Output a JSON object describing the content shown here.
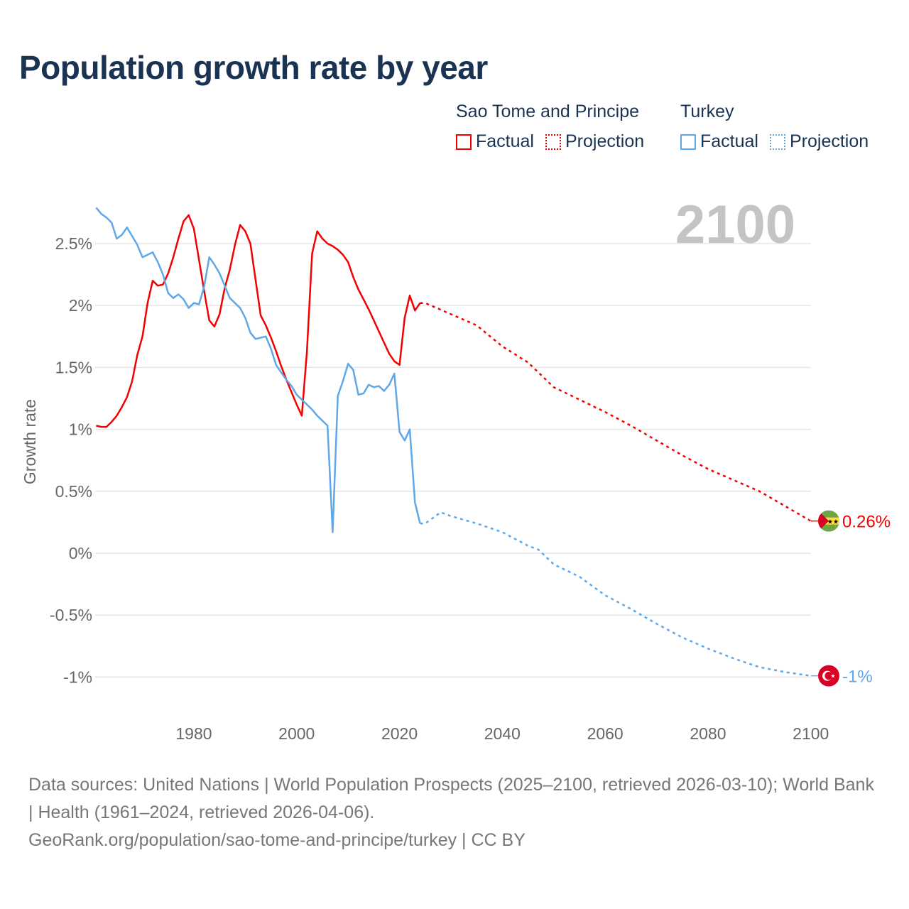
{
  "title": "Population growth rate by year",
  "legend": {
    "groups": [
      {
        "name": "Sao Tome and Principe",
        "color": "#f40000",
        "factual_label": "Factual",
        "projection_label": "Projection"
      },
      {
        "name": "Turkey",
        "color": "#5ea8ea",
        "factual_label": "Factual",
        "projection_label": "Projection"
      }
    ]
  },
  "year_watermark": "2100",
  "footer": {
    "sources": "Data sources: United Nations | World Population Prospects (2025–2100, retrieved 2026-03-10); World Bank | Health (1961–2024, retrieved 2026-04-06).",
    "link": "GeoRank.org/population/sao-tome-and-principe/turkey | CC BY"
  },
  "chart_data": {
    "type": "line",
    "title": "Population growth rate by year",
    "xlabel": "",
    "ylabel": "Growth rate",
    "xlim": [
      1961,
      2100
    ],
    "ylim": [
      -1.15,
      2.85
    ],
    "x_ticks": [
      1980,
      2000,
      2020,
      2040,
      2060,
      2080,
      2100
    ],
    "x_tick_labels": [
      "1980",
      "2000",
      "2020",
      "2040",
      "2060",
      "2080",
      "2100"
    ],
    "y_ticks": [
      2.5,
      2,
      1.5,
      1,
      0.5,
      0,
      -0.5,
      -1
    ],
    "y_tick_labels": [
      "2.5%",
      "2%",
      "1.5%",
      "1%",
      "0.5%",
      "0%",
      "-0.5%",
      "-1%"
    ],
    "grid": true,
    "legend_position": "top-right",
    "series": [
      {
        "name": "Sao Tome and Principe",
        "end_label": "0.26%",
        "factual": {
          "x": [
            1961,
            1962,
            1963,
            1964,
            1965,
            1966,
            1967,
            1968,
            1969,
            1970,
            1971,
            1972,
            1973,
            1974,
            1975,
            1976,
            1977,
            1978,
            1979,
            1980,
            1981,
            1982,
            1983,
            1984,
            1985,
            1986,
            1987,
            1988,
            1989,
            1990,
            1991,
            1992,
            1993,
            1994,
            1995,
            1996,
            1997,
            1998,
            1999,
            2000,
            2001,
            2002,
            2003,
            2004,
            2005,
            2006,
            2007,
            2008,
            2009,
            2010,
            2011,
            2012,
            2013,
            2014,
            2015,
            2016,
            2017,
            2018,
            2019,
            2020,
            2021,
            2022,
            2023,
            2024
          ],
          "y": [
            1.03,
            1.02,
            1.02,
            1.06,
            1.11,
            1.18,
            1.26,
            1.39,
            1.6,
            1.75,
            2.02,
            2.2,
            2.16,
            2.17,
            2.26,
            2.39,
            2.54,
            2.68,
            2.73,
            2.62,
            2.37,
            2.12,
            1.88,
            1.83,
            1.93,
            2.14,
            2.29,
            2.49,
            2.65,
            2.6,
            2.5,
            2.21,
            1.92,
            1.84,
            1.74,
            1.63,
            1.51,
            1.4,
            1.3,
            1.2,
            1.11,
            1.63,
            2.42,
            2.6,
            2.54,
            2.5,
            2.48,
            2.45,
            2.41,
            2.35,
            2.23,
            2.13,
            2.05,
            1.97,
            1.88,
            1.79,
            1.7,
            1.61,
            1.55,
            1.52,
            1.9,
            2.08,
            1.96,
            2.02
          ]
        },
        "projection": {
          "x": [
            2024,
            2025,
            2030,
            2035,
            2040,
            2045,
            2050,
            2055,
            2060,
            2065,
            2070,
            2075,
            2080,
            2085,
            2090,
            2095,
            2100
          ],
          "y": [
            2.02,
            2.02,
            1.93,
            1.84,
            1.67,
            1.54,
            1.34,
            1.24,
            1.14,
            1.03,
            0.91,
            0.79,
            0.68,
            0.59,
            0.5,
            0.38,
            0.26
          ]
        }
      },
      {
        "name": "Turkey",
        "end_label": "-1%",
        "factual": {
          "x": [
            1961,
            1962,
            1963,
            1964,
            1965,
            1966,
            1967,
            1968,
            1969,
            1970,
            1971,
            1972,
            1973,
            1974,
            1975,
            1976,
            1977,
            1978,
            1979,
            1980,
            1981,
            1982,
            1983,
            1984,
            1985,
            1986,
            1987,
            1988,
            1989,
            1990,
            1991,
            1992,
            1993,
            1994,
            1995,
            1996,
            1997,
            1998,
            1999,
            2000,
            2001,
            2002,
            2003,
            2004,
            2005,
            2006,
            2007,
            2008,
            2009,
            2010,
            2011,
            2012,
            2013,
            2014,
            2015,
            2016,
            2017,
            2018,
            2019,
            2020,
            2021,
            2022,
            2023,
            2024
          ],
          "y": [
            2.79,
            2.74,
            2.71,
            2.67,
            2.54,
            2.57,
            2.63,
            2.56,
            2.49,
            2.39,
            2.41,
            2.43,
            2.35,
            2.25,
            2.1,
            2.06,
            2.09,
            2.05,
            1.98,
            2.02,
            2.01,
            2.15,
            2.39,
            2.33,
            2.26,
            2.16,
            2.06,
            2.02,
            1.98,
            1.9,
            1.78,
            1.73,
            1.74,
            1.75,
            1.65,
            1.52,
            1.46,
            1.4,
            1.35,
            1.28,
            1.24,
            1.2,
            1.16,
            1.11,
            1.07,
            1.03,
            0.17,
            1.27,
            1.39,
            1.53,
            1.48,
            1.28,
            1.29,
            1.36,
            1.34,
            1.35,
            1.31,
            1.36,
            1.45,
            0.98,
            0.91,
            1.0,
            0.41,
            0.24
          ]
        },
        "projection": {
          "x": [
            2024,
            2025,
            2028,
            2030,
            2035,
            2040,
            2045,
            2047,
            2050,
            2055,
            2060,
            2065,
            2070,
            2075,
            2080,
            2085,
            2090,
            2095,
            2100
          ],
          "y": [
            0.24,
            0.24,
            0.33,
            0.3,
            0.24,
            0.17,
            0.06,
            0.03,
            -0.09,
            -0.19,
            -0.34,
            -0.45,
            -0.57,
            -0.68,
            -0.77,
            -0.85,
            -0.92,
            -0.96,
            -0.99
          ]
        }
      }
    ]
  }
}
